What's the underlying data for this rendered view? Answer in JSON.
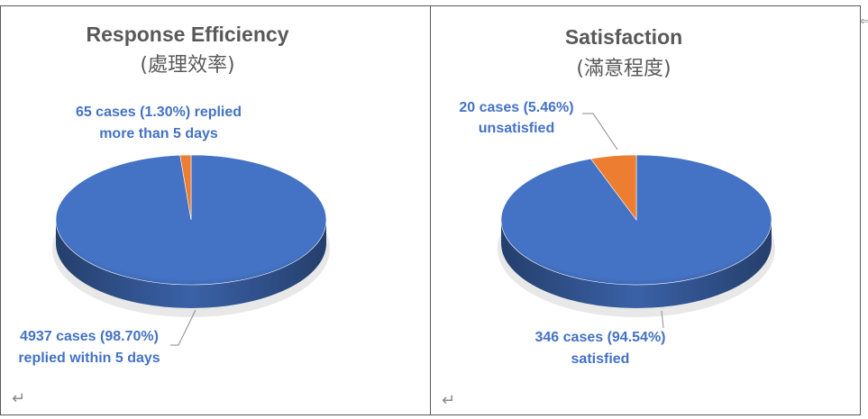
{
  "chart_data": [
    {
      "type": "pie",
      "title": "Response Efficiency",
      "subtitle": "(處理效率)",
      "slices": [
        {
          "label_line1": "4937 cases (98.70%)",
          "label_line2": "replied within 5 days",
          "value": 4937,
          "percent": 98.7,
          "color": "#4472C4"
        },
        {
          "label_line1": "65 cases (1.30%) replied",
          "label_line2": "more than 5 days",
          "value": 65,
          "percent": 1.3,
          "color": "#ED7D31"
        }
      ]
    },
    {
      "type": "pie",
      "title": "Satisfaction",
      "subtitle": "(滿意程度)",
      "slices": [
        {
          "label_line1": "346 cases (94.54%)",
          "label_line2": "satisfied",
          "value": 346,
          "percent": 94.54,
          "color": "#4472C4"
        },
        {
          "label_line1": "20 cases (5.46%)",
          "label_line2": "unsatisfied",
          "value": 20,
          "percent": 5.46,
          "color": "#ED7D31"
        }
      ]
    }
  ],
  "marks": {
    "return_symbol": "↵",
    "edge_symbol": "⇐"
  }
}
